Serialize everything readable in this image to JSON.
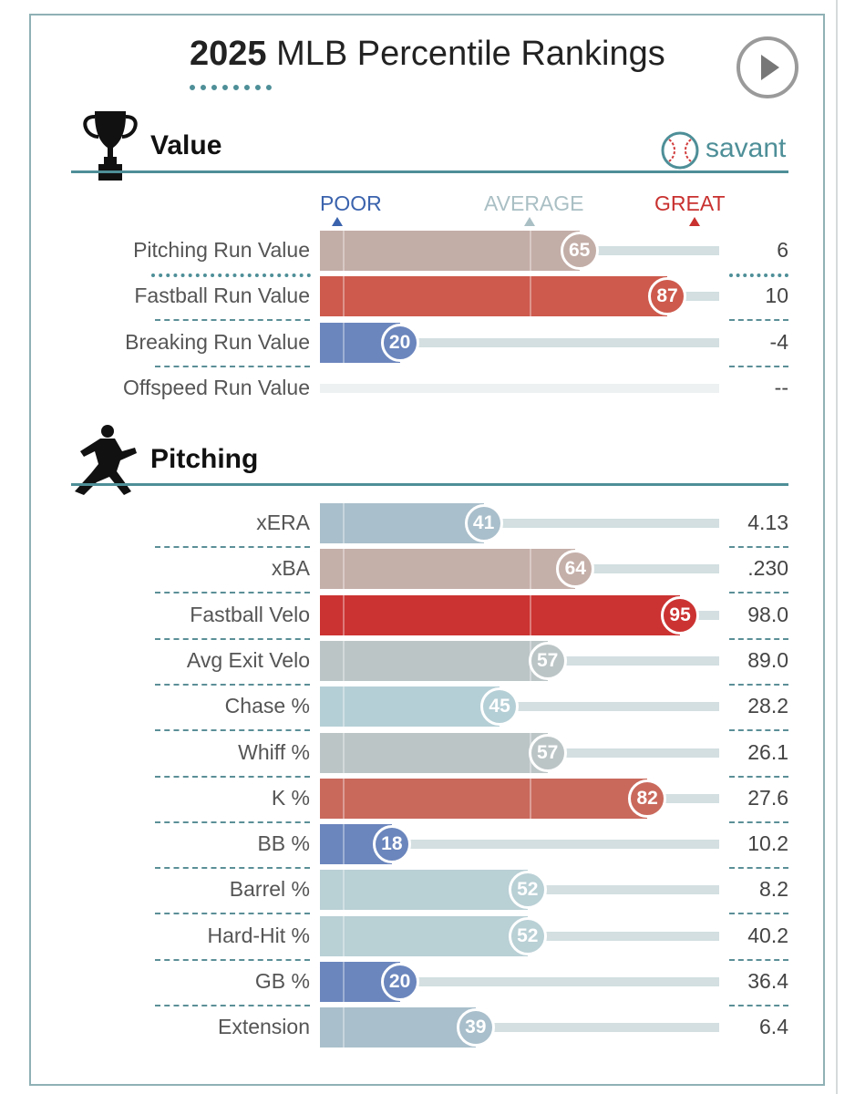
{
  "title": {
    "year": "2025",
    "text": "MLB Percentile Rankings"
  },
  "sections": {
    "value": {
      "title": "Value"
    },
    "pitching": {
      "title": "Pitching"
    }
  },
  "brand": {
    "name": "savant"
  },
  "scale": {
    "poor": "POOR",
    "average": "AVERAGE",
    "great": "GREAT"
  },
  "colors": {
    "accent": "#4e8f98",
    "poor": "#3b63ad",
    "great": "#c8312f",
    "track": "#d3dfe1"
  },
  "chart_data": [
    {
      "type": "bar",
      "title": "Value",
      "xlim": [
        0,
        100
      ],
      "categories": [
        "Pitching Run Value",
        "Fastball Run Value",
        "Breaking Run Value",
        "Offspeed Run Value"
      ],
      "percentiles": [
        65,
        87,
        20,
        null
      ],
      "values": [
        "6",
        "10",
        "-4",
        "--"
      ],
      "colors": [
        "#c3ada7",
        "#cd5a4d",
        "#6b86bd",
        "#eef1f2"
      ]
    },
    {
      "type": "bar",
      "title": "Pitching",
      "xlim": [
        0,
        100
      ],
      "categories": [
        "xERA",
        "xBA",
        "Fastball Velo",
        "Avg Exit Velo",
        "Chase %",
        "Whiff %",
        "K %",
        "BB %",
        "Barrel %",
        "Hard-Hit %",
        "GB %",
        "Extension"
      ],
      "percentiles": [
        41,
        64,
        95,
        57,
        45,
        57,
        82,
        18,
        52,
        52,
        20,
        39
      ],
      "values": [
        "4.13",
        ".230",
        "98.0",
        "89.0",
        "28.2",
        "26.1",
        "27.6",
        "10.2",
        "8.2",
        "40.2",
        "36.4",
        "6.4"
      ],
      "colors": [
        "#a9bfcb",
        "#c5afa9",
        "#cb3332",
        "#bcc5c6",
        "#b5cfd6",
        "#bcc5c6",
        "#c9695c",
        "#6b86bd",
        "#b9d0d5",
        "#b9d0d5",
        "#6b86bd",
        "#a9bfcb"
      ]
    }
  ]
}
